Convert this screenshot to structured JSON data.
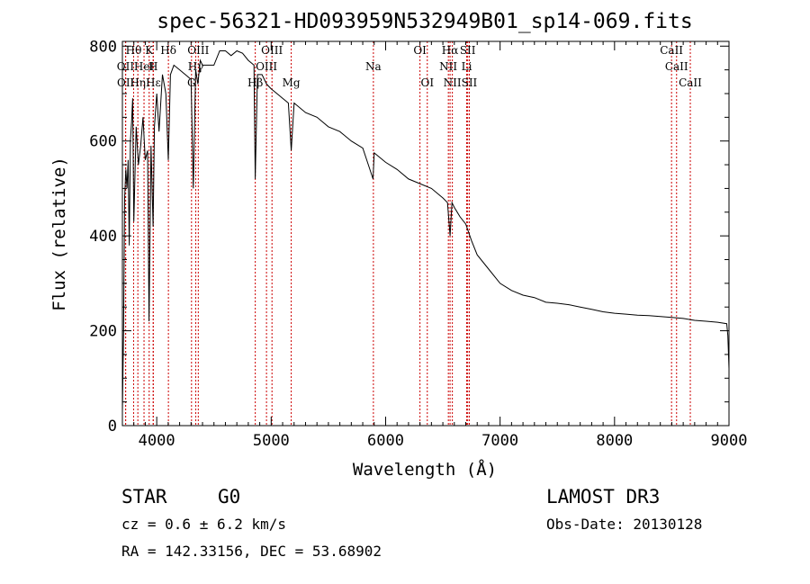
{
  "chart_data": {
    "type": "line",
    "title": "spec-56321-HD093959N532949B01_sp14-069.fits",
    "xlabel": "Wavelength (Å)",
    "ylabel": "Flux (relative)",
    "xlim": [
      3700,
      9000
    ],
    "ylim": [
      0,
      810
    ],
    "xticks": [
      4000,
      5000,
      6000,
      7000,
      8000,
      9000
    ],
    "yticks": [
      0,
      200,
      400,
      600,
      800
    ],
    "series": [
      {
        "name": "flux",
        "x": [
          3700,
          3710,
          3720,
          3730,
          3740,
          3750,
          3760,
          3770,
          3780,
          3790,
          3800,
          3820,
          3840,
          3860,
          3880,
          3900,
          3920,
          3933,
          3950,
          3968,
          3980,
          4000,
          4020,
          4050,
          4080,
          4101,
          4120,
          4150,
          4200,
          4250,
          4300,
          4320,
          4340,
          4360,
          4380,
          4400,
          4450,
          4500,
          4550,
          4600,
          4650,
          4700,
          4750,
          4800,
          4850,
          4861,
          4880,
          4920,
          4960,
          5000,
          5050,
          5100,
          5150,
          5175,
          5200,
          5300,
          5400,
          5500,
          5600,
          5700,
          5800,
          5890,
          5900,
          6000,
          6100,
          6200,
          6300,
          6400,
          6500,
          6540,
          6563,
          6580,
          6600,
          6650,
          6700,
          6750,
          6800,
          6900,
          7000,
          7100,
          7200,
          7300,
          7400,
          7500,
          7600,
          7700,
          7800,
          7900,
          8000,
          8100,
          8200,
          8300,
          8400,
          8500,
          8600,
          8700,
          8800,
          8900,
          8980,
          8990,
          9000
        ],
        "y": [
          30,
          200,
          480,
          540,
          500,
          560,
          380,
          600,
          640,
          690,
          430,
          630,
          550,
          590,
          650,
          560,
          580,
          220,
          590,
          420,
          630,
          700,
          620,
          740,
          700,
          560,
          740,
          760,
          750,
          740,
          730,
          500,
          750,
          720,
          770,
          760,
          760,
          760,
          790,
          790,
          780,
          790,
          785,
          770,
          760,
          520,
          740,
          740,
          720,
          710,
          700,
          690,
          680,
          580,
          680,
          660,
          650,
          630,
          620,
          600,
          585,
          520,
          575,
          555,
          540,
          520,
          510,
          500,
          480,
          470,
          400,
          470,
          460,
          440,
          425,
          390,
          360,
          330,
          300,
          285,
          275,
          270,
          260,
          258,
          255,
          250,
          245,
          240,
          237,
          235,
          233,
          232,
          230,
          228,
          226,
          222,
          220,
          218,
          215,
          190,
          120
        ]
      }
    ],
    "spectral_lines": [
      {
        "label": "Hθ",
        "wl": 3798,
        "row": 0
      },
      {
        "label": "K",
        "wl": 3934,
        "row": 0
      },
      {
        "label": "Hδ",
        "wl": 4102,
        "row": 0
      },
      {
        "label": "OIII",
        "wl": 4363,
        "row": 0
      },
      {
        "label": "OIII",
        "wl": 5007,
        "row": 0
      },
      {
        "label": "OI",
        "wl": 6300,
        "row": 0
      },
      {
        "label": "Hα",
        "wl": 6563,
        "row": 0
      },
      {
        "label": "SII",
        "wl": 6717,
        "row": 0
      },
      {
        "label": "CaII",
        "wl": 8498,
        "row": 0
      },
      {
        "label": "OII",
        "wl": 3727,
        "row": 1
      },
      {
        "label": "HeI",
        "wl": 3889,
        "row": 1
      },
      {
        "label": "H",
        "wl": 3969,
        "row": 1
      },
      {
        "label": "Hγ",
        "wl": 4341,
        "row": 1
      },
      {
        "label": "OIII",
        "wl": 4959,
        "row": 1
      },
      {
        "label": "Na",
        "wl": 5893,
        "row": 1
      },
      {
        "label": "NII",
        "wl": 6548,
        "row": 1
      },
      {
        "label": "Li",
        "wl": 6708,
        "row": 1
      },
      {
        "label": "CaII",
        "wl": 8542,
        "row": 1
      },
      {
        "label": "OII",
        "wl": 3729,
        "row": 2
      },
      {
        "label": "Hη",
        "wl": 3835,
        "row": 2
      },
      {
        "label": "Hε",
        "wl": 3970,
        "row": 2
      },
      {
        "label": "G",
        "wl": 4304,
        "row": 2
      },
      {
        "label": "Hβ",
        "wl": 4861,
        "row": 2
      },
      {
        "label": "Mg",
        "wl": 5175,
        "row": 2
      },
      {
        "label": "OI",
        "wl": 6364,
        "row": 2
      },
      {
        "label": "NII",
        "wl": 6583,
        "row": 2
      },
      {
        "label": "SII",
        "wl": 6731,
        "row": 2
      },
      {
        "label": "CaII",
        "wl": 8662,
        "row": 2
      }
    ]
  },
  "info": {
    "object_type": "STAR",
    "subclass": "G0",
    "survey": "LAMOST DR3",
    "cz": "cz = 0.6 ± 6.2 km/s",
    "obs_date": "Obs-Date: 20130128",
    "coords": "RA = 142.33156, DEC =  53.68902"
  },
  "colors": {
    "line": "#000000",
    "marker": "#cc0000",
    "axes": "#000000"
  }
}
